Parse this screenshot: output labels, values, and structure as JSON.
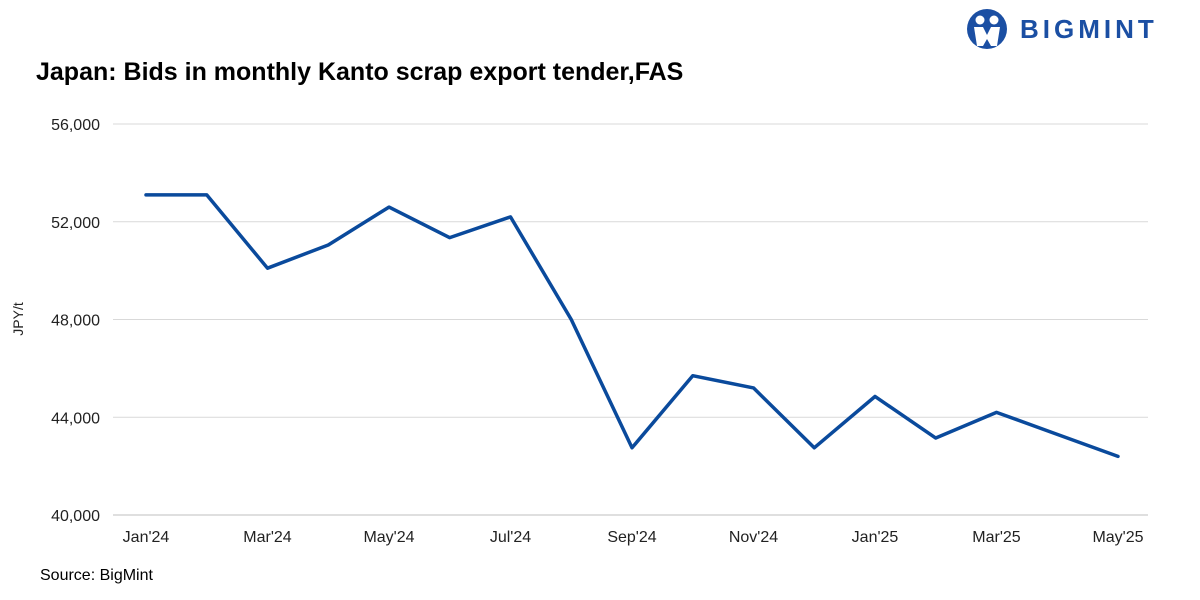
{
  "brand": {
    "name": "BIGMINT",
    "color": "#1b4fa3"
  },
  "source": "Source: BigMint",
  "chart_data": {
    "type": "line",
    "title": "Japan: Bids in monthly Kanto scrap export tender,FAS",
    "ylabel": "JPY/t",
    "xlabel": "",
    "ylim": [
      40000,
      56000
    ],
    "yticks": [
      "40,000",
      "44,000",
      "48,000",
      "52,000",
      "56,000"
    ],
    "ytick_values": [
      40000,
      44000,
      48000,
      52000,
      56000
    ],
    "x": [
      "Jan'24",
      "Feb'24",
      "Mar'24",
      "Apr'24",
      "May'24",
      "Jun'24",
      "Jul'24",
      "Aug'24",
      "Sep'24",
      "Oct'24",
      "Nov'24",
      "Dec'24",
      "Jan'25",
      "Feb'25",
      "Mar'25",
      "Apr'25",
      "May'25"
    ],
    "xtick_labels_shown": [
      "Jan'24",
      "Mar'24",
      "May'24",
      "Jul'24",
      "Sep'24",
      "Nov'24",
      "Jan'25",
      "Mar'25",
      "May'25"
    ],
    "series": [
      {
        "color": "#0a4a9c",
        "values": [
          53100,
          53100,
          50100,
          51050,
          52600,
          51350,
          52200,
          48000,
          42750,
          45700,
          45200,
          42750,
          44850,
          43150,
          44200,
          43300,
          42400
        ]
      }
    ],
    "grid": true,
    "legend": "none"
  }
}
